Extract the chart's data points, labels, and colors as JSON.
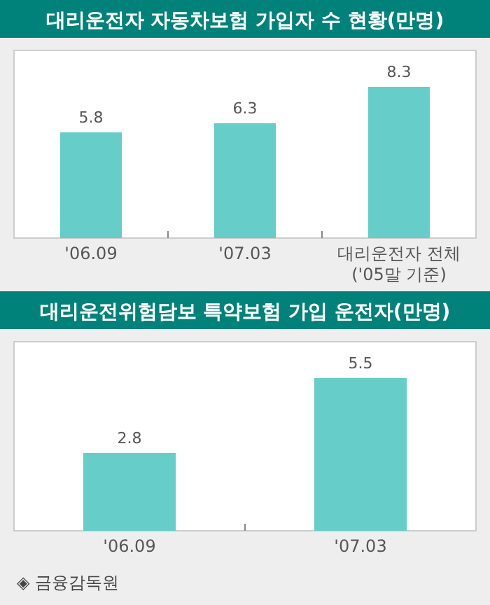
{
  "chart_data": [
    {
      "type": "bar",
      "title": "대리운전자 자동차보험 가입자 수 현황(만명)",
      "categories": [
        "'06.09",
        "'07.03",
        "대리운전자 전체\n('05말 기준)"
      ],
      "values": [
        5.8,
        6.3,
        8.3
      ],
      "color": "#66cdc8",
      "data_labels": true
    },
    {
      "type": "bar",
      "title": "대리운전위험담보 특약보험 가입 운전자(만명)",
      "categories": [
        "'06.09",
        "'07.03"
      ],
      "values": [
        2.8,
        5.5
      ],
      "color": "#66cdc8",
      "data_labels": true,
      "annotations": [
        "◈ 금융감독원"
      ]
    }
  ]
}
